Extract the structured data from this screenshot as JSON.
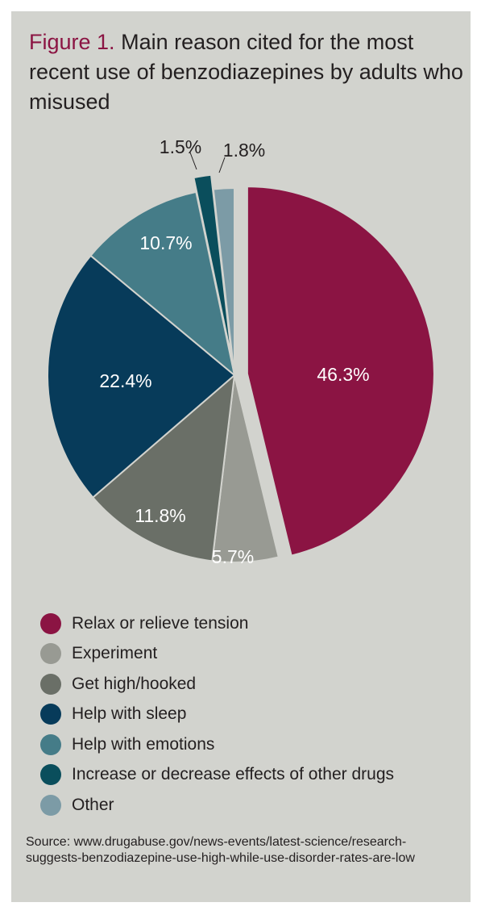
{
  "figure_label": "Figure 1.",
  "title": "Main reason cited for the most recent use of benzodiazepines by adults who misused",
  "source": "Source: www.drugabuse.gov/news-events/latest-science/research-suggests-benzodiazepine-use-high-while-use-disorder-rates-are-low",
  "chart_data": {
    "type": "pie",
    "title": "Main reason cited for the most recent use of benzodiazepines by adults who misused",
    "start": "12 o'clock, clockwise",
    "slices": [
      {
        "label": "Relax or relieve tension",
        "value": 46.3,
        "value_label": "46.3%",
        "color": "#8b1443",
        "exploded": true
      },
      {
        "label": "Experiment",
        "value": 5.7,
        "value_label": "5.7%",
        "color": "#989a93"
      },
      {
        "label": "Get high/hooked",
        "value": 11.8,
        "value_label": "11.8%",
        "color": "#6a6f67"
      },
      {
        "label": "Help with sleep",
        "value": 22.4,
        "value_label": "22.4%",
        "color": "#073b5a"
      },
      {
        "label": "Help with emotions",
        "value": 10.7,
        "value_label": "10.7%",
        "color": "#457c88"
      },
      {
        "label": "Increase or decrease effects of other drugs",
        "value": 1.5,
        "value_label": "1.5%",
        "color": "#0a4e5c",
        "exploded": true
      },
      {
        "label": "Other",
        "value": 1.8,
        "value_label": "1.8%",
        "color": "#7c9ba6"
      }
    ],
    "legend_position": "bottom"
  }
}
